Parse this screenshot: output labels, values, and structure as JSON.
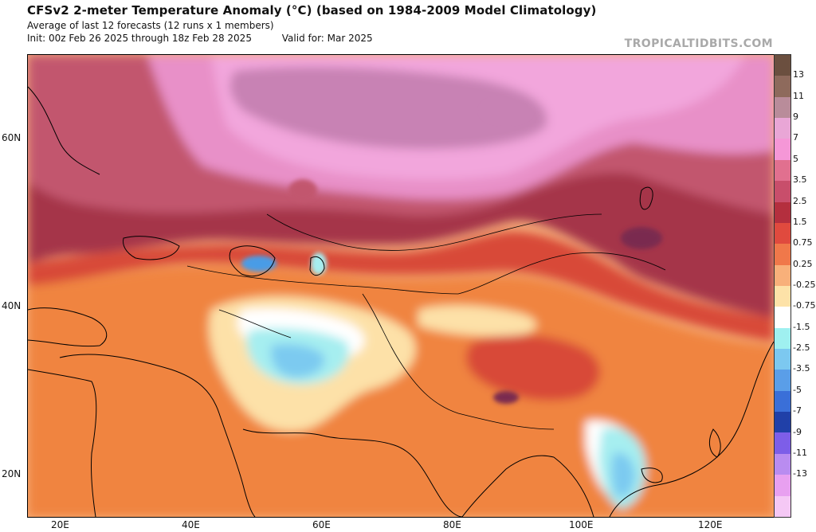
{
  "header": {
    "title": "CFSv2 2-meter Temperature Anomaly (°C) (based on 1984-2009 Model Climatology)",
    "subtitle": "Average of last 12 forecasts (12 runs x 1 members)",
    "init": "Init: 00z Feb 26 2025 through 18z Feb 28 2025",
    "valid": "Valid for: Mar 2025"
  },
  "brand": "TROPICALTIDBITS.COM",
  "axes": {
    "lat_labels": [
      "60N",
      "40N",
      "20N"
    ],
    "lon_labels": [
      "20E",
      "40E",
      "60E",
      "80E",
      "100E",
      "120E"
    ]
  },
  "colorbar": {
    "labels": [
      "13",
      "11",
      "9",
      "7",
      "5",
      "3.5",
      "2.5",
      "1.5",
      "0.75",
      "0.25",
      "-0.25",
      "-0.75",
      "-1.5",
      "-2.5",
      "-3.5",
      "-5",
      "-7",
      "-9",
      "-11",
      "-13"
    ],
    "colors": [
      "#6b4f3f",
      "#8e6a5c",
      "#b98c9a",
      "#e9a6d6",
      "#f597d7",
      "#e1708f",
      "#c84e6b",
      "#b42f3e",
      "#e04a3e",
      "#f0784a",
      "#f8b07a",
      "#fde2a8",
      "#ffffff",
      "#9ff0f0",
      "#7cc8f0",
      "#5a9ee8",
      "#3a6fd8",
      "#2040a8",
      "#7d5ee8",
      "#b98cf0",
      "#e8a0f0",
      "#f5c8f5"
    ]
  },
  "map": {
    "colors": {
      "ocean_bg": "#f6b07c",
      "deep_red": "#a5364a",
      "magenta_red": "#c2566e",
      "pink": "#e890c8",
      "light_pink": "#f2a6dc",
      "mauve": "#c882b4",
      "red": "#d84838",
      "orange": "#f0843f",
      "light_orange": "#f8b27a",
      "pale": "#fde1a8",
      "white": "#ffffff",
      "cyan": "#a6eef0",
      "light_blue": "#7ccaf0",
      "blue": "#4a9ce6",
      "dark_purple": "#7a2a50"
    }
  }
}
